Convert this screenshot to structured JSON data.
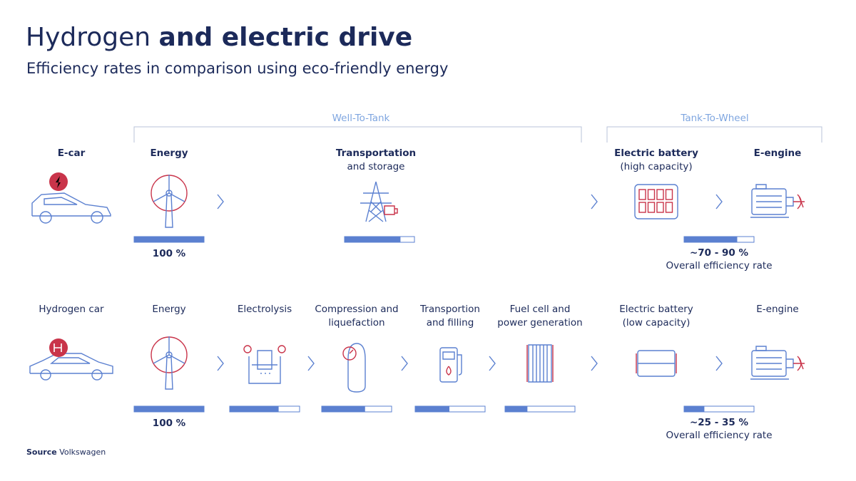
{
  "header": {
    "title_light": "Hydrogen",
    "title_bold": "and electric drive",
    "subtitle": "Efficiency rates in comparison using eco-friendly energy"
  },
  "phases": [
    "Well-To-Tank",
    "Tank-To-Wheel"
  ],
  "rows": [
    {
      "label": "E-car",
      "steps": [
        {
          "title": "Energy",
          "value": 100,
          "value_label": "100 %"
        },
        {
          "title": "Transportation",
          "subtitle": "and storage",
          "value": 80
        },
        {
          "title": "Electric battery",
          "subtitle": "(high capacity)"
        },
        {
          "title": "E-engine"
        }
      ],
      "overall": {
        "value": 76,
        "label": "~70 - 90 %",
        "caption": "Overall efficiency rate"
      }
    },
    {
      "label": "Hydrogen car",
      "steps": [
        {
          "title": "Energy",
          "value": 100,
          "value_label": "100 %"
        },
        {
          "title": "Electrolysis",
          "value": 70
        },
        {
          "title": "Compression and",
          "subtitle": "liquefaction",
          "value": 62
        },
        {
          "title": "Transportion",
          "subtitle": "and filling",
          "value": 49
        },
        {
          "title": "Fuel cell and",
          "subtitle": "power generation",
          "value": 32
        },
        {
          "title": "Electric battery",
          "subtitle": "(low capacity)"
        },
        {
          "title": "E-engine"
        }
      ],
      "overall": {
        "value": 29,
        "label": "~25 - 35 %",
        "caption": "Overall efficiency rate"
      }
    }
  ],
  "source": {
    "label": "Source",
    "text": "Volkswagen"
  }
}
